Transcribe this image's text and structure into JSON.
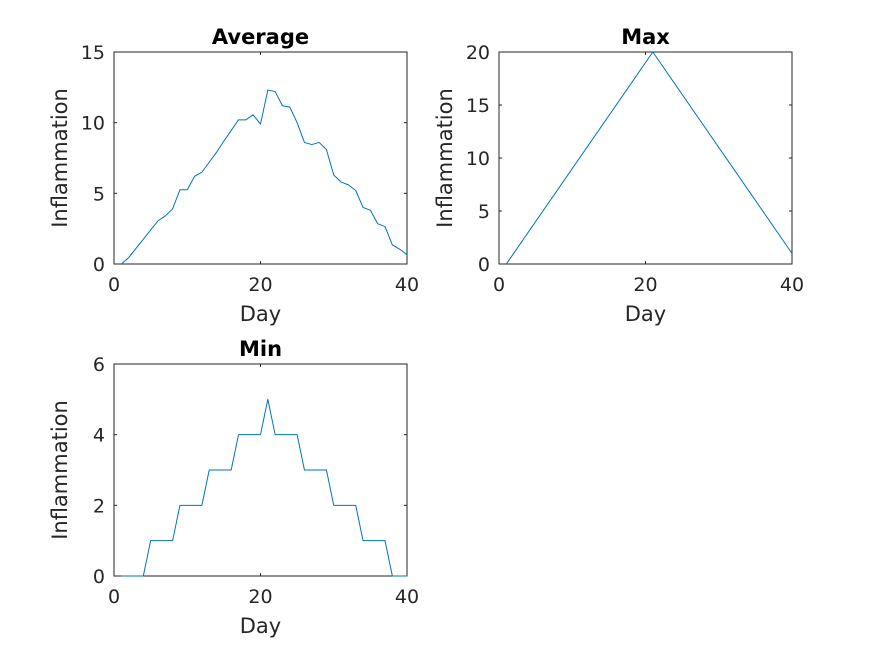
{
  "chart_data": [
    {
      "type": "line",
      "title": "Average",
      "xlabel": "Day",
      "ylabel": "Inflammation",
      "xlim": [
        0,
        40
      ],
      "ylim": [
        0,
        15
      ],
      "xticks": [
        0,
        20,
        40
      ],
      "yticks": [
        0,
        5,
        10,
        15
      ],
      "grid": false,
      "series": [
        {
          "color": "#0072BD",
          "x": [
            1,
            2,
            3,
            4,
            5,
            6,
            7,
            8,
            9,
            10,
            11,
            12,
            13,
            14,
            15,
            16,
            17,
            18,
            19,
            20,
            21,
            22,
            23,
            24,
            25,
            26,
            27,
            28,
            29,
            30,
            31,
            32,
            33,
            34,
            35,
            36,
            37,
            38,
            39,
            40
          ],
          "y": [
            0,
            0.45,
            1.1,
            1.75,
            2.4,
            3.05,
            3.4,
            3.9,
            5.25,
            5.25,
            6.2,
            6.5,
            7.2,
            7.9,
            8.7,
            9.45,
            10.2,
            10.2,
            10.55,
            9.9,
            12.3,
            12.2,
            11.2,
            11.1,
            10.0,
            8.6,
            8.45,
            8.6,
            8.1,
            6.3,
            5.8,
            5.6,
            5.2,
            4.0,
            3.8,
            2.85,
            2.65,
            1.35,
            1.05,
            0.65
          ]
        }
      ]
    },
    {
      "type": "line",
      "title": "Max",
      "xlabel": "Day",
      "ylabel": "Inflammation",
      "xlim": [
        0,
        40
      ],
      "ylim": [
        0,
        20
      ],
      "xticks": [
        0,
        20,
        40
      ],
      "yticks": [
        0,
        5,
        10,
        15,
        20
      ],
      "grid": false,
      "series": [
        {
          "color": "#0072BD",
          "x": [
            1,
            21,
            40
          ],
          "y": [
            0,
            20,
            1
          ]
        }
      ]
    },
    {
      "type": "line",
      "title": "Min",
      "xlabel": "Day",
      "ylabel": "Inflammation",
      "xlim": [
        0,
        40
      ],
      "ylim": [
        0,
        6
      ],
      "xticks": [
        0,
        20,
        40
      ],
      "yticks": [
        0,
        2,
        4,
        6
      ],
      "grid": false,
      "series": [
        {
          "color": "#0072BD",
          "x": [
            1,
            2,
            3,
            4,
            5,
            6,
            7,
            8,
            9,
            10,
            11,
            12,
            13,
            14,
            15,
            16,
            17,
            18,
            19,
            20,
            21,
            22,
            23,
            24,
            25,
            26,
            27,
            28,
            29,
            30,
            31,
            32,
            33,
            34,
            35,
            36,
            37,
            38,
            39,
            40
          ],
          "y": [
            0,
            0,
            0,
            0,
            1,
            1,
            1,
            1,
            2,
            2,
            2,
            2,
            3,
            3,
            3,
            3,
            4,
            4,
            4,
            4,
            5,
            4,
            4,
            4,
            4,
            3,
            3,
            3,
            3,
            2,
            2,
            2,
            2,
            1,
            1,
            1,
            1,
            0,
            0,
            0
          ]
        }
      ]
    }
  ]
}
